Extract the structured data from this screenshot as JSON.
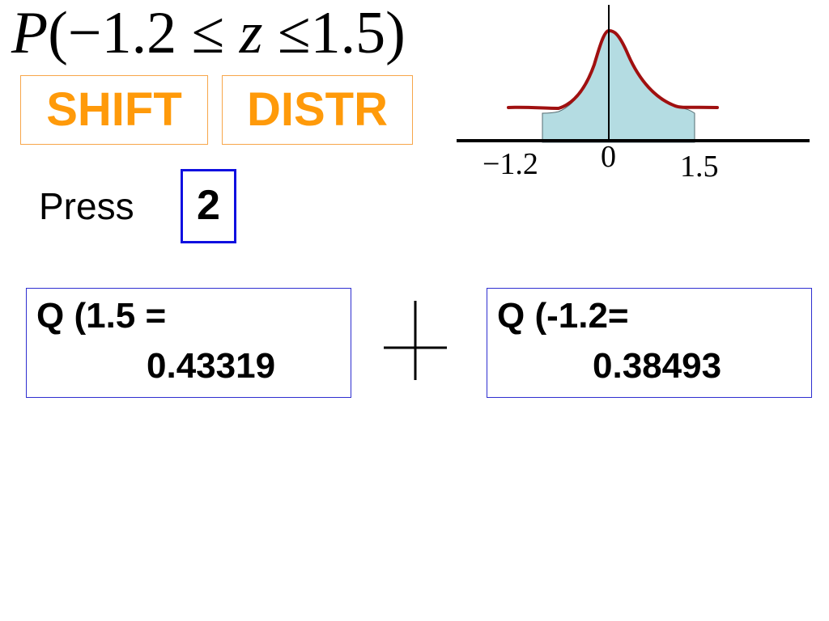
{
  "formula": {
    "p": "P",
    "open": "(",
    "lower": "−1.2",
    "le1": "≤",
    "var": "z",
    "le2": "≤",
    "upper": "1.5",
    "close": ")"
  },
  "keys": {
    "shift": "SHIFT",
    "distr": "DISTR",
    "press": "Press",
    "two": "2"
  },
  "results": {
    "left": {
      "label": "Q (1.5 =",
      "value": "0.43319"
    },
    "operator": "+",
    "right": {
      "label": "Q (-1.2=",
      "value": "0.38493"
    }
  },
  "curve": {
    "ticks": [
      "−1.2",
      "0",
      "1.5"
    ],
    "fill_color": "#b4dce2",
    "curve_color": "#a01010"
  }
}
